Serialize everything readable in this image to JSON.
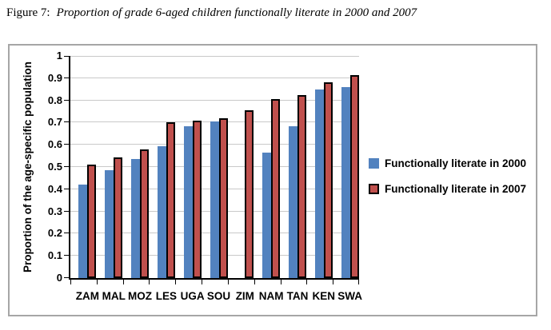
{
  "figure": {
    "label": "Figure 7:",
    "title": "Proportion of grade 6-aged children functionally literate in 2000 and 2007"
  },
  "chart_data": {
    "type": "bar",
    "title": "Proportion of grade 6-aged children functionally literate in 2000 and 2007",
    "categories": [
      "ZAM",
      "MAL",
      "MOZ",
      "LES",
      "UGA",
      "SOU",
      "ZIM",
      "NAM",
      "TAN",
      "KEN",
      "SWA"
    ],
    "series": [
      {
        "name": "Functionally literate in 2000",
        "color": "#5282bf",
        "border": null,
        "values": [
          0.42,
          0.485,
          0.535,
          0.595,
          0.685,
          0.705,
          null,
          0.565,
          0.685,
          0.85,
          0.86
        ]
      },
      {
        "name": "Functionally literate in 2007",
        "color": "#c0504d",
        "border": "#000000",
        "values": [
          0.51,
          0.545,
          0.58,
          0.7,
          0.71,
          0.72,
          0.755,
          0.805,
          0.825,
          0.88,
          0.915
        ]
      }
    ],
    "xlabel": "",
    "ylabel": "Proportion of the age-specific population",
    "ylim": [
      0,
      1
    ],
    "ytick_step": 0.1,
    "yticks": [
      "1",
      "0.9",
      "0.8",
      "0.7",
      "0.6",
      "0.5",
      "0.4",
      "0.3",
      "0.2",
      "0.1",
      "0"
    ],
    "grid": true,
    "gridline_color": "#c9c9c9",
    "legend_position": "right"
  }
}
